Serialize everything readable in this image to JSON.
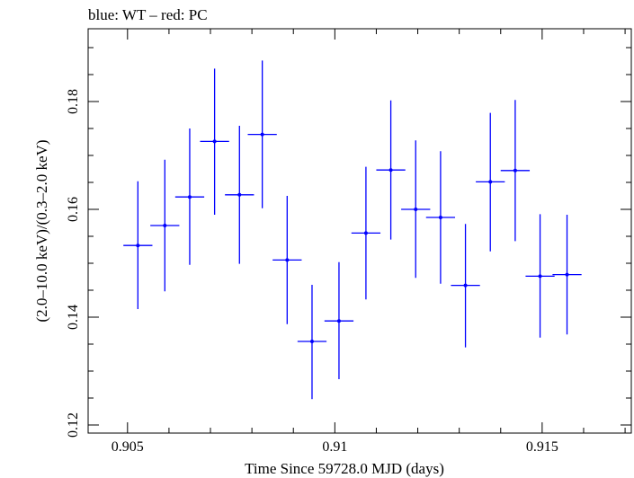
{
  "chart_data": {
    "type": "scatter",
    "title": "blue: WT – red: PC",
    "xlabel": "Time Since 59728.0 MJD (days)",
    "ylabel": "(2.0–10.0 keV)/(0.3–2.0 keV)",
    "xlim": [
      0.90405,
      0.91715
    ],
    "ylim": [
      0.1185,
      0.1935
    ],
    "x_ticks": [
      0.905,
      0.91,
      0.915
    ],
    "x_tick_labels": [
      "0.905",
      "0.91",
      "0.915"
    ],
    "y_ticks": [
      0.12,
      0.14,
      0.16,
      0.18
    ],
    "y_tick_labels": [
      "0.12",
      "0.14",
      "0.16",
      "0.18"
    ],
    "x_minor_step": 0.001,
    "y_minor_step": 0.005,
    "grid": false,
    "series": [
      {
        "color": "#0000ff",
        "points": [
          {
            "x": 0.90525,
            "y": 0.1533,
            "xerr": 0.00035,
            "ylo": 0.1415,
            "yhi": 0.1652
          },
          {
            "x": 0.9059,
            "y": 0.157,
            "xerr": 0.00035,
            "ylo": 0.1448,
            "yhi": 0.1692
          },
          {
            "x": 0.9065,
            "y": 0.1623,
            "xerr": 0.00035,
            "ylo": 0.1497,
            "yhi": 0.175
          },
          {
            "x": 0.9071,
            "y": 0.1726,
            "xerr": 0.00035,
            "ylo": 0.159,
            "yhi": 0.1861
          },
          {
            "x": 0.9077,
            "y": 0.1627,
            "xerr": 0.00035,
            "ylo": 0.1499,
            "yhi": 0.1755
          },
          {
            "x": 0.90825,
            "y": 0.1739,
            "xerr": 0.00035,
            "ylo": 0.1602,
            "yhi": 0.1876
          },
          {
            "x": 0.90885,
            "y": 0.1506,
            "xerr": 0.00035,
            "ylo": 0.1387,
            "yhi": 0.1625
          },
          {
            "x": 0.90945,
            "y": 0.1355,
            "xerr": 0.00035,
            "ylo": 0.1248,
            "yhi": 0.146
          },
          {
            "x": 0.9101,
            "y": 0.1393,
            "xerr": 0.00035,
            "ylo": 0.1285,
            "yhi": 0.1502
          },
          {
            "x": 0.91075,
            "y": 0.1556,
            "xerr": 0.00035,
            "ylo": 0.1433,
            "yhi": 0.1679
          },
          {
            "x": 0.91135,
            "y": 0.1673,
            "xerr": 0.00035,
            "ylo": 0.1544,
            "yhi": 0.1802
          },
          {
            "x": 0.91195,
            "y": 0.16,
            "xerr": 0.00035,
            "ylo": 0.1473,
            "yhi": 0.1728
          },
          {
            "x": 0.91255,
            "y": 0.1585,
            "xerr": 0.00035,
            "ylo": 0.1462,
            "yhi": 0.1708
          },
          {
            "x": 0.91315,
            "y": 0.1459,
            "xerr": 0.00035,
            "ylo": 0.1344,
            "yhi": 0.1573
          },
          {
            "x": 0.91375,
            "y": 0.1651,
            "xerr": 0.00035,
            "ylo": 0.1522,
            "yhi": 0.1779
          },
          {
            "x": 0.91435,
            "y": 0.1672,
            "xerr": 0.00035,
            "ylo": 0.1541,
            "yhi": 0.1803
          },
          {
            "x": 0.91495,
            "y": 0.1476,
            "xerr": 0.00035,
            "ylo": 0.1362,
            "yhi": 0.1591
          },
          {
            "x": 0.9156,
            "y": 0.1479,
            "xerr": 0.00035,
            "ylo": 0.1368,
            "yhi": 0.159
          }
        ]
      }
    ]
  }
}
